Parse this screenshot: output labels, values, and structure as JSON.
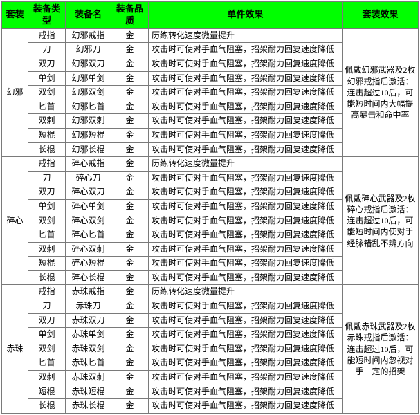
{
  "headers": [
    "套装",
    "装备类型",
    "装备名",
    "装备品质",
    "单件效果",
    "套装效果"
  ],
  "effects": {
    "ring": "历练转化速度微量提升",
    "weapon": "攻击时可使对手血气阻塞，招架耐力回复速度降低"
  },
  "quality": "金",
  "sets": [
    {
      "name": "幻邪",
      "setEffect": "佩戴幻邪武器及2枚幻邪戒指后激活：连击超过10后，可能短时间内大幅提高暴击和命中率",
      "items": [
        {
          "type": "戒指",
          "name": "幻邪戒指",
          "eff": "ring"
        },
        {
          "type": "刀",
          "name": "幻邪刀",
          "eff": "weapon"
        },
        {
          "type": "双刀",
          "name": "幻邪双刀",
          "eff": "weapon"
        },
        {
          "type": "单剑",
          "name": "幻邪单剑",
          "eff": "weapon"
        },
        {
          "type": "双剑",
          "name": "幻邪双剑",
          "eff": "weapon"
        },
        {
          "type": "匕首",
          "name": "幻邪匕首",
          "eff": "weapon"
        },
        {
          "type": "双刺",
          "name": "幻邪双刺",
          "eff": "weapon"
        },
        {
          "type": "短棍",
          "name": "幻邪短棍",
          "eff": "weapon"
        },
        {
          "type": "长棍",
          "name": "幻邪长棍",
          "eff": "weapon"
        }
      ]
    },
    {
      "name": "碎心",
      "setEffect": "佩戴碎心武器及2枚碎心戒指后激活：连击超过10后，可能短时间内使对手经脉错乱不辨方向",
      "items": [
        {
          "type": "戒指",
          "name": "碎心戒指",
          "eff": "ring"
        },
        {
          "type": "刀",
          "name": "碎心刀",
          "eff": "weapon"
        },
        {
          "type": "双刀",
          "name": "碎心双刀",
          "eff": "weapon"
        },
        {
          "type": "单剑",
          "name": "碎心单剑",
          "eff": "weapon"
        },
        {
          "type": "双剑",
          "name": "碎心双剑",
          "eff": "weapon"
        },
        {
          "type": "匕首",
          "name": "碎心匕首",
          "eff": "weapon"
        },
        {
          "type": "双刺",
          "name": "碎心双刺",
          "eff": "weapon"
        },
        {
          "type": "短棍",
          "name": "碎心短棍",
          "eff": "weapon"
        },
        {
          "type": "长棍",
          "name": "碎心长棍",
          "eff": "weapon"
        }
      ]
    },
    {
      "name": "赤珠",
      "setEffect": "佩戴赤珠武器及2枚赤珠戒指后激活：连击超过10后，可能短时间内忽视对手一定的招架",
      "items": [
        {
          "type": "戒指",
          "name": "赤珠戒指",
          "eff": "ring"
        },
        {
          "type": "刀",
          "name": "赤珠刀",
          "eff": "weapon"
        },
        {
          "type": "双刀",
          "name": "赤珠双刀",
          "eff": "weapon"
        },
        {
          "type": "单剑",
          "name": "赤珠单剑",
          "eff": "weapon"
        },
        {
          "type": "双剑",
          "name": "赤珠双剑",
          "eff": "weapon"
        },
        {
          "type": "匕首",
          "name": "赤珠匕首",
          "eff": "weapon"
        },
        {
          "type": "双刺",
          "name": "赤珠双刺",
          "eff": "weapon"
        },
        {
          "type": "短棍",
          "name": "赤珠短棍",
          "eff": "weapon"
        },
        {
          "type": "长棍",
          "name": "赤珠长棍",
          "eff": "weapon"
        }
      ]
    }
  ]
}
